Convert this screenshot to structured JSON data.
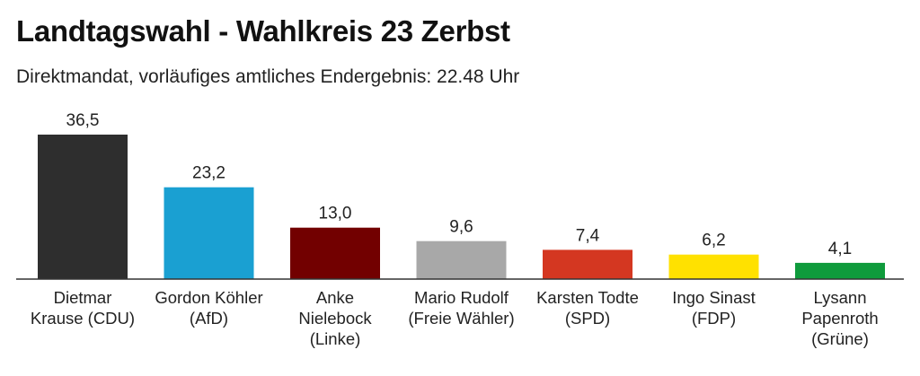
{
  "header": {
    "title": "Landtagswahl - Wahlkreis 23 Zerbst",
    "subtitle": "Direktmandat, vorläufiges amtliches Endergebnis: 22.48 Uhr"
  },
  "chart_data": {
    "type": "bar",
    "title": "Landtagswahl - Wahlkreis 23 Zerbst",
    "subtitle": "Direktmandat, vorläufiges amtliches Endergebnis: 22.48 Uhr",
    "xlabel": "",
    "ylabel": "",
    "ylim": [
      0,
      36.5
    ],
    "grid": false,
    "categories": [
      [
        "Dietmar",
        "Krause (CDU)"
      ],
      [
        "Gordon Köhler",
        "(AfD)"
      ],
      [
        "Anke",
        "Nielebock",
        "(Linke)"
      ],
      [
        "Mario Rudolf",
        "(Freie Wähler)"
      ],
      [
        "Karsten Todte",
        "(SPD)"
      ],
      [
        "Ingo Sinast",
        "(FDP)"
      ],
      [
        "Lysann",
        "Papenroth",
        "(Grüne)"
      ]
    ],
    "values": [
      36.5,
      23.2,
      13.0,
      9.6,
      7.4,
      6.2,
      4.1
    ],
    "value_labels": [
      "36,5",
      "23,2",
      "13,0",
      "9,6",
      "7,4",
      "6,2",
      "4,1"
    ],
    "colors": [
      "#2e2e2e",
      "#1aa0d2",
      "#720000",
      "#a8a8a8",
      "#d43721",
      "#ffe100",
      "#0f9b3c"
    ]
  }
}
